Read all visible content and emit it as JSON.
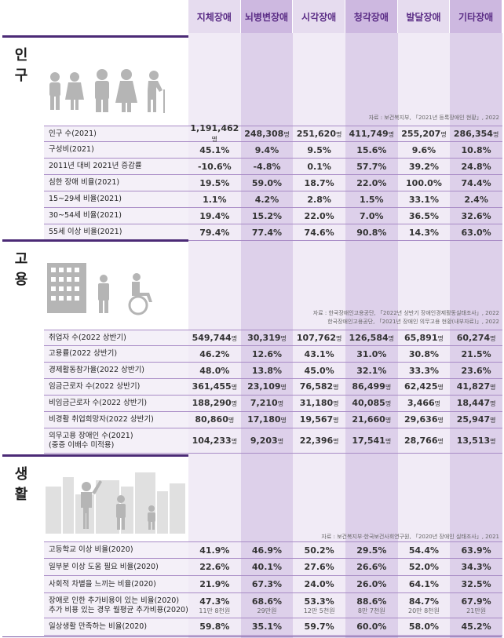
{
  "columns": [
    "지체장애",
    "뇌병변장애",
    "시각장애",
    "청각장애",
    "발달장애",
    "기타장애"
  ],
  "sections": {
    "population": {
      "title": "인구",
      "source": "자료 : 보건복지부, 「2021년 등록장애인 현황」, 2022",
      "rows": [
        {
          "label": "인구 수(2021)",
          "values": [
            "1,191,462명",
            "248,308명",
            "251,620명",
            "411,749명",
            "255,207명",
            "286,354명"
          ]
        },
        {
          "label": "구성비(2021)",
          "values": [
            "45.1%",
            "9.4%",
            "9.5%",
            "15.6%",
            "9.6%",
            "10.8%"
          ]
        },
        {
          "label": "2011년 대비 2021년 증감률",
          "values": [
            "-10.6%",
            "-4.8%",
            "0.1%",
            "57.7%",
            "39.2%",
            "24.8%"
          ]
        },
        {
          "label": "심한 장애 비율(2021)",
          "values": [
            "19.5%",
            "59.0%",
            "18.7%",
            "22.0%",
            "100.0%",
            "74.4%"
          ]
        },
        {
          "label": "15~29세 비율(2021)",
          "values": [
            "1.1%",
            "4.2%",
            "2.8%",
            "1.5%",
            "33.1%",
            "2.4%"
          ]
        },
        {
          "label": "30~54세 비율(2021)",
          "values": [
            "19.4%",
            "15.2%",
            "22.0%",
            "7.0%",
            "36.5%",
            "32.6%"
          ]
        },
        {
          "label": "55세 이상 비율(2021)",
          "values": [
            "79.4%",
            "77.4%",
            "74.6%",
            "90.8%",
            "14.3%",
            "63.0%"
          ]
        }
      ]
    },
    "employment": {
      "title": "고용",
      "source1": "자료 : 한국장애인고용공단, 「2022년 상반기 장애인경제활동실태조사」, 2022",
      "source2": "한국장애인고용공단, 「2021년 장애인 의무고용 현황(내부자료)」, 2022",
      "rows": [
        {
          "label": "취업자 수(2022 상반기)",
          "values": [
            "549,744명",
            "30,319명",
            "107,762명",
            "126,584명",
            "65,891명",
            "60,274명"
          ]
        },
        {
          "label": "고용률(2022 상반기)",
          "values": [
            "46.2%",
            "12.6%",
            "43.1%",
            "31.0%",
            "30.8%",
            "21.5%"
          ]
        },
        {
          "label": "경제활동참가율(2022 상반기)",
          "values": [
            "48.0%",
            "13.8%",
            "45.0%",
            "32.1%",
            "33.3%",
            "23.6%"
          ]
        },
        {
          "label": "임금근로자 수(2022 상반기)",
          "values": [
            "361,455명",
            "23,109명",
            "76,582명",
            "86,499명",
            "62,425명",
            "41,827명"
          ]
        },
        {
          "label": "비임금근로자 수(2022 상반기)",
          "values": [
            "188,290명",
            "7,210명",
            "31,180명",
            "40,085명",
            "3,466명",
            "18,447명"
          ]
        },
        {
          "label": "비경활 취업희망자(2022 상반기)",
          "values": [
            "80,860명",
            "17,180명",
            "19,567명",
            "21,660명",
            "29,636명",
            "25,947명"
          ]
        },
        {
          "label": "의무고용 장애인 수(2021)\n(중증 이배수 미적용)",
          "values": [
            "104,233명",
            "9,203명",
            "22,396명",
            "17,541명",
            "28,766명",
            "13,513명"
          ]
        }
      ]
    },
    "life": {
      "title": "생활",
      "source": "자료 : 보건복지부·한국보건사회연구원, 「2020년 장애인 실태조사」, 2021",
      "rows": [
        {
          "label": "고등학교 이상 비율(2020)",
          "values": [
            "41.9%",
            "46.9%",
            "50.2%",
            "29.5%",
            "54.4%",
            "63.9%"
          ]
        },
        {
          "label": "일부분 이상 도움 필요 비율(2020)",
          "values": [
            "22.6%",
            "40.1%",
            "27.6%",
            "26.6%",
            "52.0%",
            "34.3%"
          ]
        },
        {
          "label": "사회적 차별을 느끼는 비율(2020)",
          "values": [
            "21.9%",
            "67.3%",
            "24.0%",
            "26.0%",
            "64.1%",
            "32.5%"
          ]
        },
        {
          "label": "장애로 인한 추가비용이 있는 비율(2020)\n추가 비용 있는 경우 월평균 추가비용(2020)",
          "values": [
            "47.3%",
            "68.6%",
            "53.3%",
            "88.6%",
            "84.7%",
            "67.9%"
          ],
          "subs": [
            "11만 8천원",
            "29만원",
            "12만 5천원",
            "8만 7천원",
            "20만 8천원",
            "21만원"
          ]
        },
        {
          "label": "일상생활 만족하는 비율(2020)",
          "values": [
            "59.8%",
            "35.1%",
            "59.7%",
            "60.0%",
            "58.0%",
            "45.2%"
          ]
        }
      ]
    }
  }
}
